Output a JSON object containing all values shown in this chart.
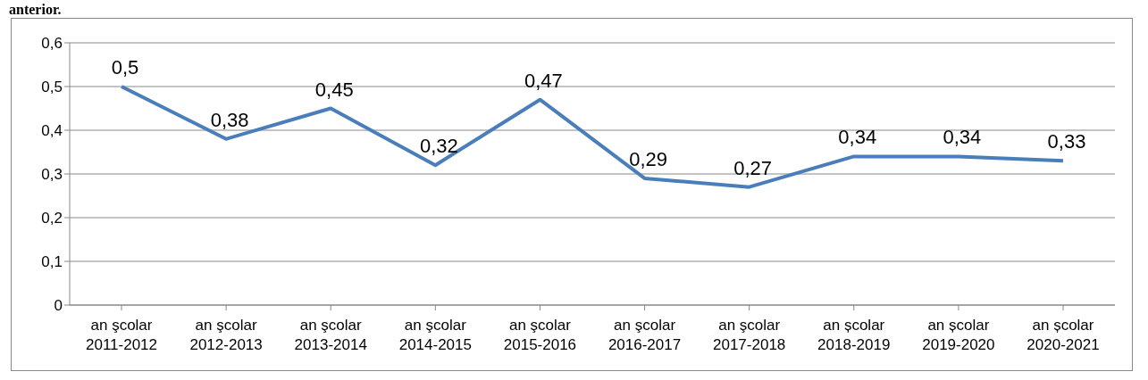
{
  "chart_data": {
    "type": "line",
    "annotations": [
      "anterior."
    ],
    "categories": [
      "an şcolar 2011-2012",
      "an şcolar 2012-2013",
      "an şcolar 2013-2014",
      "an şcolar 2014-2015",
      "an şcolar 2015-2016",
      "an şcolar 2016-2017",
      "an şcolar 2017-2018",
      "an școlar 2018-2019",
      "an școlar 2019-2020",
      "an școlar 2020-2021"
    ],
    "series": [
      {
        "color": "#4a7ebb",
        "values": [
          0.5,
          0.38,
          0.45,
          0.32,
          0.47,
          0.29,
          0.27,
          0.34,
          0.34,
          0.33
        ],
        "value_labels": [
          "0,5",
          "0,38",
          "0,45",
          "0,32",
          "0,47",
          "0,29",
          "0,27",
          "0,34",
          "0,34",
          "0,33"
        ]
      }
    ],
    "ylim": [
      0,
      0.6
    ],
    "yticks": [
      {
        "value": 0,
        "label": "0"
      },
      {
        "value": 0.1,
        "label": "0,1"
      },
      {
        "value": 0.2,
        "label": "0,2"
      },
      {
        "value": 0.3,
        "label": "0,3"
      },
      {
        "value": 0.4,
        "label": "0,4"
      },
      {
        "value": 0.5,
        "label": "0,5"
      },
      {
        "value": 0.6,
        "label": "0,6"
      }
    ],
    "grid": "y",
    "legend": false,
    "marker": "none",
    "line_style": "solid"
  }
}
